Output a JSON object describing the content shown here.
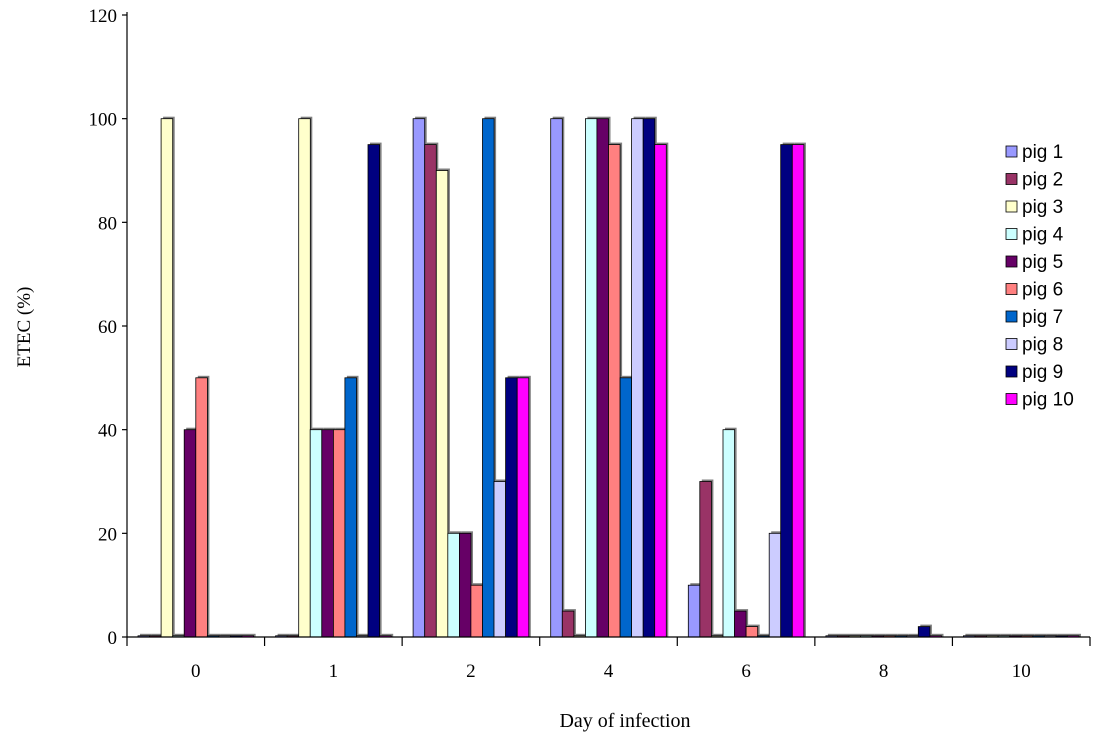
{
  "chart_data": {
    "type": "bar",
    "xlabel": "Day of infection",
    "ylabel": "ETEC (%)",
    "ylim": [
      0,
      120
    ],
    "yticks": [
      0,
      20,
      40,
      60,
      80,
      100,
      120
    ],
    "grid": false,
    "legend_position": "right",
    "categories": [
      "0",
      "1",
      "2",
      "4",
      "6",
      "8",
      "10"
    ],
    "series": [
      {
        "name": "pig 1",
        "color": "#9999ff",
        "values": [
          0,
          0,
          100,
          100,
          10,
          0,
          0
        ]
      },
      {
        "name": "pig 2",
        "color": "#993366",
        "values": [
          0,
          0,
          95,
          5,
          30,
          0,
          0
        ]
      },
      {
        "name": "pig 3",
        "color": "#ffffcc",
        "values": [
          100,
          100,
          90,
          0,
          0,
          0,
          0
        ]
      },
      {
        "name": "pig 4",
        "color": "#ccffff",
        "values": [
          0,
          40,
          20,
          100,
          40,
          0,
          0
        ]
      },
      {
        "name": "pig 5",
        "color": "#660066",
        "values": [
          40,
          40,
          20,
          100,
          5,
          0,
          0
        ]
      },
      {
        "name": "pig 6",
        "color": "#ff8080",
        "values": [
          50,
          40,
          10,
          95,
          2,
          0,
          0
        ]
      },
      {
        "name": "pig 7",
        "color": "#0066cc",
        "values": [
          0,
          50,
          100,
          50,
          0,
          0,
          0
        ]
      },
      {
        "name": "pig 8",
        "color": "#ccccff",
        "values": [
          0,
          0,
          30,
          100,
          20,
          0,
          0
        ]
      },
      {
        "name": "pig 9",
        "color": "#000080",
        "values": [
          0,
          95,
          50,
          100,
          95,
          2,
          0
        ]
      },
      {
        "name": "pig 10",
        "color": "#ff00ff",
        "values": [
          0,
          0,
          50,
          95,
          95,
          0,
          0
        ]
      }
    ]
  }
}
